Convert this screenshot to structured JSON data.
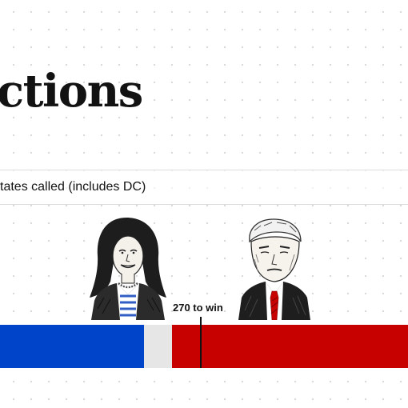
{
  "headline": "ctions",
  "status_strip": {
    "text": "tates called (includes DC)"
  },
  "threshold": {
    "label": "270 to win"
  },
  "candidates": [
    {
      "portrait_icon": "harris-portrait-illustration",
      "party_color": "#0044c9"
    },
    {
      "portrait_icon": "trump-portrait-illustration",
      "party_color": "#c70000"
    }
  ],
  "colors": {
    "democrat": "#0044c9",
    "republican": "#c70000",
    "uncalled": "#e6e6e6",
    "text": "#121212"
  }
}
